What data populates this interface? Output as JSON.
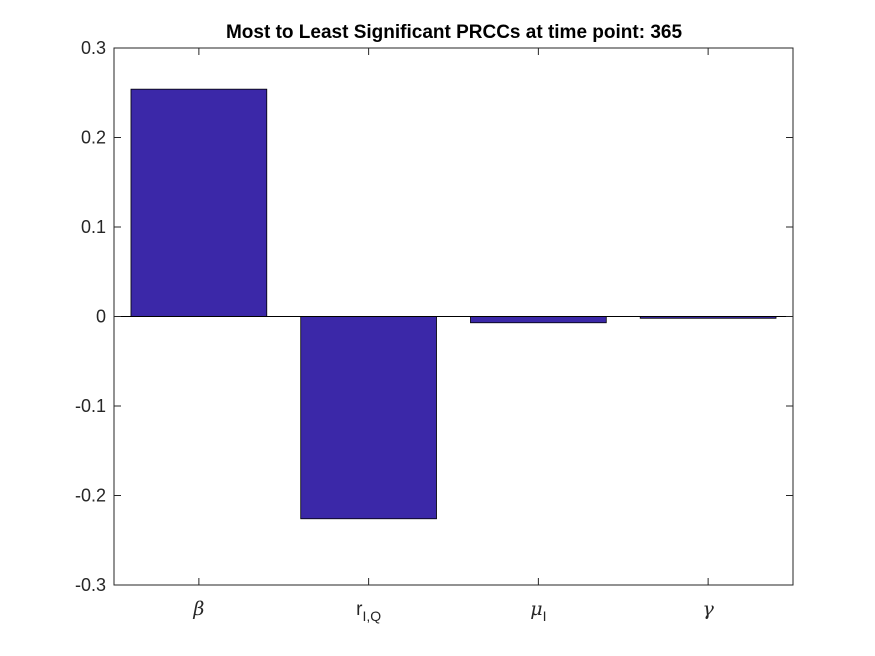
{
  "chart_data": {
    "type": "bar",
    "title": "Most to Least Significant PRCCs at time point: 365",
    "xlabel": "",
    "ylabel": "",
    "ylim": [
      -0.3,
      0.3
    ],
    "yticks": [
      "0.3",
      "0.2",
      "0.1",
      "0",
      "-0.1",
      "-0.2",
      "-0.3"
    ],
    "categories": [
      {
        "main": "β",
        "sub": "",
        "style": "italic"
      },
      {
        "main": "r",
        "sub": "I,Q",
        "style": "roman"
      },
      {
        "main": "μ",
        "sub": "I",
        "style": "italic"
      },
      {
        "main": "γ",
        "sub": "",
        "style": "italic"
      }
    ],
    "values": [
      0.254,
      -0.226,
      -0.007,
      -0.002
    ],
    "bar_color": "#3b28a8",
    "grid": false,
    "legend": "none"
  }
}
